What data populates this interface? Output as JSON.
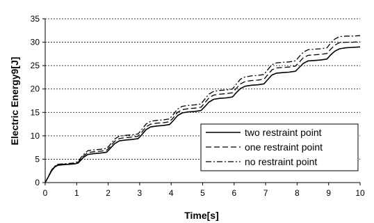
{
  "chart_data": {
    "type": "line",
    "title": "",
    "xlabel": "Time[s]",
    "ylabel": "Electric Energy9[J]",
    "xlim": [
      0,
      10
    ],
    "ylim": [
      0,
      35
    ],
    "xticks": [
      0,
      1,
      2,
      3,
      4,
      5,
      6,
      7,
      8,
      9,
      10
    ],
    "yticks": [
      0,
      5,
      10,
      15,
      20,
      25,
      30,
      35
    ],
    "grid": "horizontal dashed",
    "legend_placement": "bottom-right",
    "series": [
      {
        "name": "two restraint point",
        "style": "solid",
        "x": [
          0,
          0.1,
          0.2,
          0.3,
          0.4,
          0.55,
          0.75,
          0.95,
          1.05,
          1.2,
          1.35,
          1.55,
          1.75,
          1.95,
          2.05,
          2.2,
          2.35,
          2.55,
          2.75,
          2.95,
          3.05,
          3.2,
          3.35,
          3.55,
          3.75,
          3.95,
          4.05,
          4.2,
          4.35,
          4.55,
          4.75,
          4.95,
          5.05,
          5.2,
          5.35,
          5.55,
          5.75,
          5.95,
          6.05,
          6.2,
          6.35,
          6.55,
          6.75,
          6.95,
          7.05,
          7.2,
          7.35,
          7.55,
          7.75,
          7.95,
          8.05,
          8.2,
          8.35,
          8.55,
          8.75,
          8.95,
          9.05,
          9.2,
          9.35,
          9.55,
          9.75,
          10.0
        ],
        "y": [
          0,
          1.2,
          2.5,
          3.3,
          3.7,
          3.8,
          3.9,
          4.0,
          4.2,
          5.3,
          6.0,
          6.2,
          6.3,
          6.5,
          7.2,
          8.3,
          8.9,
          9.1,
          9.2,
          9.4,
          10.1,
          11.3,
          11.9,
          12.1,
          12.2,
          12.4,
          13.1,
          14.3,
          14.9,
          15.1,
          15.2,
          15.4,
          16.1,
          17.2,
          17.8,
          18.0,
          18.1,
          18.3,
          19.1,
          20.1,
          20.6,
          20.8,
          20.9,
          21.1,
          21.9,
          23.0,
          23.4,
          23.5,
          23.6,
          23.8,
          24.5,
          25.5,
          26.0,
          26.1,
          26.2,
          26.4,
          27.2,
          28.1,
          28.6,
          28.8,
          28.9,
          29.0
        ]
      },
      {
        "name": "one restraint point",
        "style": "dashed",
        "x": [
          0,
          0.1,
          0.2,
          0.3,
          0.4,
          0.55,
          0.75,
          0.95,
          1.05,
          1.2,
          1.35,
          1.55,
          1.75,
          1.95,
          2.05,
          2.2,
          2.35,
          2.55,
          2.75,
          2.95,
          3.05,
          3.2,
          3.35,
          3.55,
          3.75,
          3.95,
          4.05,
          4.2,
          4.35,
          4.55,
          4.75,
          4.95,
          5.05,
          5.2,
          5.35,
          5.55,
          5.75,
          5.95,
          6.05,
          6.2,
          6.35,
          6.55,
          6.75,
          6.95,
          7.05,
          7.2,
          7.35,
          7.55,
          7.75,
          7.95,
          8.05,
          8.2,
          8.35,
          8.55,
          8.75,
          8.95,
          9.05,
          9.2,
          9.35,
          9.55,
          9.75,
          10.0
        ],
        "y": [
          0,
          1.3,
          2.6,
          3.4,
          3.8,
          3.9,
          4.0,
          4.1,
          4.4,
          5.6,
          6.4,
          6.6,
          6.7,
          6.9,
          7.6,
          8.8,
          9.4,
          9.6,
          9.7,
          9.9,
          10.6,
          11.9,
          12.5,
          12.7,
          12.8,
          13.0,
          13.7,
          15.0,
          15.6,
          15.8,
          15.9,
          16.1,
          16.9,
          18.1,
          18.7,
          18.9,
          19.0,
          19.2,
          20.0,
          21.1,
          21.6,
          21.8,
          21.9,
          22.1,
          22.9,
          24.1,
          24.5,
          24.6,
          24.7,
          24.9,
          25.6,
          26.7,
          27.2,
          27.3,
          27.4,
          27.6,
          28.4,
          29.4,
          29.9,
          30.0,
          30.0,
          30.1
        ]
      },
      {
        "name": "no restraint point",
        "style": "dash-dot",
        "x": [
          0,
          0.1,
          0.2,
          0.3,
          0.4,
          0.55,
          0.75,
          0.95,
          1.05,
          1.2,
          1.35,
          1.55,
          1.75,
          1.95,
          2.05,
          2.2,
          2.35,
          2.55,
          2.75,
          2.95,
          3.05,
          3.2,
          3.35,
          3.55,
          3.75,
          3.95,
          4.05,
          4.2,
          4.35,
          4.55,
          4.75,
          4.95,
          5.05,
          5.2,
          5.35,
          5.55,
          5.75,
          5.95,
          6.05,
          6.2,
          6.35,
          6.55,
          6.75,
          6.95,
          7.05,
          7.2,
          7.35,
          7.55,
          7.75,
          7.95,
          8.05,
          8.2,
          8.35,
          8.55,
          8.75,
          8.95,
          9.05,
          9.2,
          9.35,
          9.55,
          9.75,
          10.0
        ],
        "y": [
          0,
          1.3,
          2.7,
          3.5,
          3.9,
          4.0,
          4.1,
          4.2,
          4.6,
          5.9,
          6.8,
          7.0,
          7.1,
          7.3,
          8.0,
          9.3,
          9.9,
          10.1,
          10.2,
          10.4,
          11.2,
          12.5,
          13.1,
          13.3,
          13.4,
          13.6,
          14.4,
          15.7,
          16.3,
          16.5,
          16.6,
          16.8,
          17.7,
          18.9,
          19.5,
          19.7,
          19.8,
          20.0,
          20.9,
          22.1,
          22.6,
          22.8,
          22.9,
          23.1,
          24.0,
          25.2,
          25.6,
          25.7,
          25.8,
          26.0,
          26.8,
          27.9,
          28.4,
          28.5,
          28.6,
          28.8,
          29.7,
          30.7,
          31.2,
          31.3,
          31.3,
          31.4
        ]
      }
    ]
  }
}
